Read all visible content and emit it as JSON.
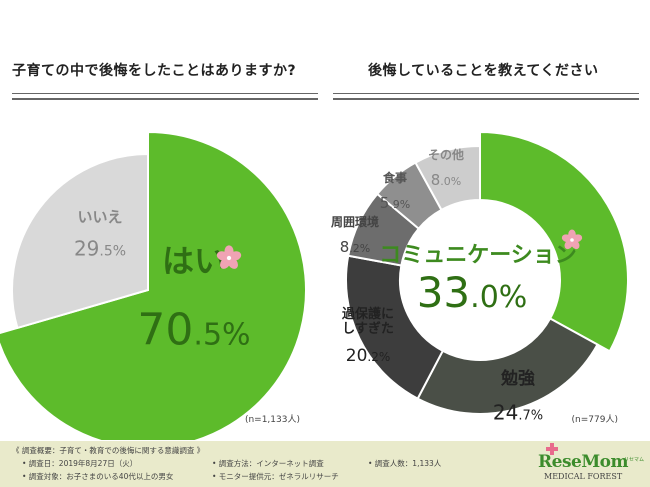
{
  "left": {
    "title": "子育ての中で後悔をしたことはありますか?",
    "n_note": "(n=1,133人)"
  },
  "right": {
    "title": "後悔していることを教えてください",
    "n_note": "(n=779人)"
  },
  "chart_data": [
    {
      "type": "pie",
      "title": "子育ての中で後悔をしたことはありますか?",
      "categories": [
        "はい",
        "いいえ"
      ],
      "values": [
        70.5,
        29.5
      ],
      "colors": [
        "#5dbb2b",
        "#d9d9d9"
      ],
      "labels": [
        {
          "name": "はい",
          "int": "70",
          "dec": ".5%"
        },
        {
          "name": "いいえ",
          "int": "29",
          "dec": ".5%"
        }
      ]
    },
    {
      "type": "pie",
      "subtype": "donut",
      "title": "後悔していることを教えてください",
      "categories": [
        "コミュニケーション",
        "勉強",
        "過保護にしすぎた",
        "周囲環境",
        "食事",
        "その他"
      ],
      "values": [
        33.0,
        24.7,
        20.2,
        8.2,
        5.9,
        8.0
      ],
      "colors": [
        "#5dbb2b",
        "#4a4f47",
        "#3d3d3d",
        "#6d6d6d",
        "#8f8f8f",
        "#cdcdcd"
      ],
      "labels": [
        {
          "name": "コミュニケーション",
          "int": "33",
          "dec": ".0%"
        },
        {
          "name": "勉強",
          "int": "24",
          "dec": ".7%"
        },
        {
          "name": "過保護に|しすぎた",
          "int": "20",
          "dec": ".2%"
        },
        {
          "name": "周囲環境",
          "int": "8",
          "dec": ".2%"
        },
        {
          "name": "食事",
          "int": "5",
          "dec": ".9%"
        },
        {
          "name": "その他",
          "int": "8",
          "dec": ".0%"
        }
      ]
    }
  ],
  "footer": {
    "heading": "《 調査概要：子育て・教育での後悔に関する意識調査 》",
    "date": "• 調査日：2019年8月27日（火）",
    "method": "• 調査方法：インターネット調査",
    "count": "• 調査人数：1,133人",
    "target": "• 調査対象：お子さまのいる40代以上の男女",
    "provider": "• モニター提供元：ゼネラルリサーチ"
  },
  "logo": {
    "main": "ReseMom",
    "sub": "MEDICAL FOREST",
    "kana": "リセマム"
  }
}
